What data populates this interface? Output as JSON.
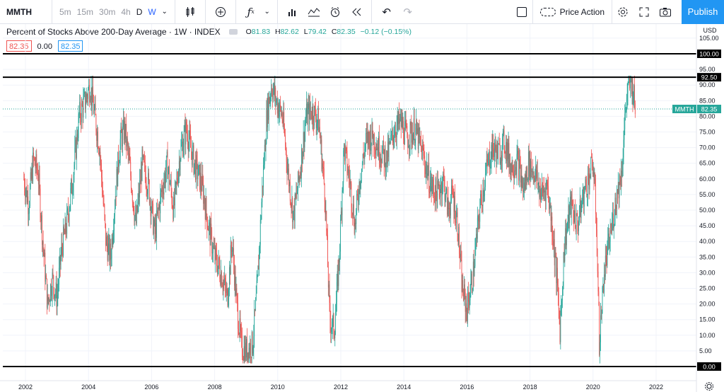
{
  "toolbar": {
    "symbol": "MMTH",
    "intervals": [
      "5m",
      "15m",
      "30m",
      "4h",
      "D",
      "W"
    ],
    "active_interval": "W",
    "template_label": "Price Action",
    "publish_label": "Publish",
    "icons": [
      "chevron-down-icon",
      "candles-icon",
      "add-circle-icon",
      "fx-icon",
      "bar-chart-icon",
      "indicators-icon",
      "alert-clock-icon",
      "replay-icon",
      "undo-icon",
      "redo-icon",
      "layout-square-icon",
      "cloud-icon",
      "gear-icon",
      "fullscreen-icon",
      "camera-icon"
    ]
  },
  "legend": {
    "title": "Percent of Stocks Above 200-Day Average · 1W · INDEX",
    "open_label": "O",
    "open": "81.83",
    "high_label": "H",
    "high": "82.62",
    "low_label": "L",
    "low": "79.42",
    "close_label": "C",
    "close": "82.35",
    "change": "−0.12 (−0.15%)",
    "input_close": "82.35",
    "input_zero": "0.00",
    "input_last": "82.35"
  },
  "colors": {
    "up": "#26a69a",
    "down": "#ef5350",
    "accent": "#2196f3",
    "badge": "#26a69a"
  },
  "chart_data": {
    "type": "candlestick",
    "currency": "USD",
    "x_ticks": [
      "2002",
      "2004",
      "2006",
      "2008",
      "2010",
      "2012",
      "2014",
      "2016",
      "2018",
      "2020",
      "2022"
    ],
    "xlim": [
      2001.6,
      2022.8
    ],
    "ylim": [
      0,
      105
    ],
    "y_ticks": [
      "105.00",
      "95.00",
      "90.00",
      "85.00",
      "80.00",
      "75.00",
      "70.00",
      "65.00",
      "60.00",
      "55.00",
      "50.00",
      "45.00",
      "40.00",
      "35.00",
      "30.00",
      "25.00",
      "20.00",
      "15.00",
      "10.00",
      "5.00"
    ],
    "y_tick_values": [
      105,
      95,
      90,
      85,
      80,
      75,
      70,
      65,
      60,
      55,
      50,
      45,
      40,
      35,
      30,
      25,
      20,
      15,
      10,
      5
    ],
    "horizontal_lines": [
      {
        "value": 100,
        "label": "100.00"
      },
      {
        "value": 92.5,
        "label": "92.50"
      },
      {
        "value": 0,
        "label": "0.00"
      }
    ],
    "last_value": 82.35,
    "last_label": "82.35",
    "symbol_badge": "MMTH",
    "series_path": [
      [
        2001.95,
        60
      ],
      [
        2002.1,
        52
      ],
      [
        2002.25,
        66
      ],
      [
        2002.4,
        62
      ],
      [
        2002.55,
        40
      ],
      [
        2002.7,
        20
      ],
      [
        2002.85,
        28
      ],
      [
        2003.0,
        22
      ],
      [
        2003.15,
        38
      ],
      [
        2003.3,
        45
      ],
      [
        2003.5,
        60
      ],
      [
        2003.7,
        80
      ],
      [
        2003.9,
        85
      ],
      [
        2004.05,
        90
      ],
      [
        2004.2,
        80
      ],
      [
        2004.35,
        70
      ],
      [
        2004.55,
        40
      ],
      [
        2004.7,
        35
      ],
      [
        2004.85,
        55
      ],
      [
        2005.0,
        72
      ],
      [
        2005.15,
        76
      ],
      [
        2005.35,
        60
      ],
      [
        2005.5,
        45
      ],
      [
        2005.7,
        65
      ],
      [
        2005.9,
        58
      ],
      [
        2006.1,
        42
      ],
      [
        2006.3,
        55
      ],
      [
        2006.5,
        65
      ],
      [
        2006.7,
        50
      ],
      [
        2006.9,
        68
      ],
      [
        2007.1,
        76
      ],
      [
        2007.35,
        65
      ],
      [
        2007.6,
        58
      ],
      [
        2007.8,
        45
      ],
      [
        2008.0,
        35
      ],
      [
        2008.2,
        30
      ],
      [
        2008.4,
        22
      ],
      [
        2008.55,
        40
      ],
      [
        2008.7,
        20
      ],
      [
        2008.85,
        6
      ],
      [
        2009.0,
        5
      ],
      [
        2009.2,
        7
      ],
      [
        2009.35,
        25
      ],
      [
        2009.5,
        55
      ],
      [
        2009.65,
        80
      ],
      [
        2009.8,
        90
      ],
      [
        2009.95,
        85
      ],
      [
        2010.15,
        80
      ],
      [
        2010.35,
        60
      ],
      [
        2010.5,
        48
      ],
      [
        2010.7,
        62
      ],
      [
        2010.9,
        80
      ],
      [
        2011.1,
        82
      ],
      [
        2011.3,
        78
      ],
      [
        2011.5,
        55
      ],
      [
        2011.65,
        15
      ],
      [
        2011.8,
        12
      ],
      [
        2011.95,
        35
      ],
      [
        2012.1,
        70
      ],
      [
        2012.3,
        58
      ],
      [
        2012.45,
        45
      ],
      [
        2012.6,
        60
      ],
      [
        2012.8,
        72
      ],
      [
        2013.0,
        74
      ],
      [
        2013.2,
        70
      ],
      [
        2013.45,
        66
      ],
      [
        2013.7,
        76
      ],
      [
        2013.9,
        78
      ],
      [
        2014.1,
        73
      ],
      [
        2014.35,
        76
      ],
      [
        2014.6,
        68
      ],
      [
        2014.85,
        58
      ],
      [
        2015.05,
        55
      ],
      [
        2015.25,
        60
      ],
      [
        2015.4,
        50
      ],
      [
        2015.55,
        55
      ],
      [
        2015.7,
        46
      ],
      [
        2015.85,
        25
      ],
      [
        2016.0,
        18
      ],
      [
        2016.2,
        30
      ],
      [
        2016.4,
        50
      ],
      [
        2016.6,
        62
      ],
      [
        2016.8,
        70
      ],
      [
        2017.0,
        68
      ],
      [
        2017.2,
        72
      ],
      [
        2017.4,
        64
      ],
      [
        2017.6,
        66
      ],
      [
        2017.8,
        56
      ],
      [
        2017.95,
        65
      ],
      [
        2018.15,
        62
      ],
      [
        2018.35,
        55
      ],
      [
        2018.55,
        58
      ],
      [
        2018.7,
        45
      ],
      [
        2018.85,
        28
      ],
      [
        2018.95,
        12
      ],
      [
        2019.1,
        40
      ],
      [
        2019.3,
        52
      ],
      [
        2019.5,
        45
      ],
      [
        2019.7,
        55
      ],
      [
        2019.85,
        60
      ],
      [
        2020.0,
        65
      ],
      [
        2020.1,
        48
      ],
      [
        2020.2,
        8
      ],
      [
        2020.35,
        30
      ],
      [
        2020.55,
        42
      ],
      [
        2020.75,
        55
      ],
      [
        2020.9,
        62
      ],
      [
        2021.05,
        85
      ],
      [
        2021.2,
        92
      ],
      [
        2021.35,
        82
      ]
    ]
  }
}
